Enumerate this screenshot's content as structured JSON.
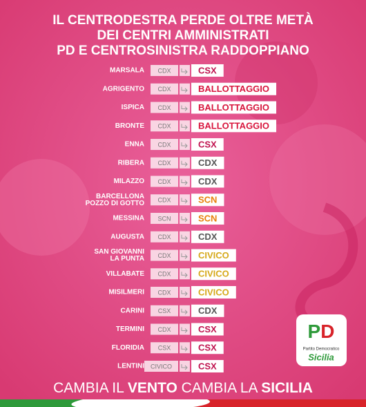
{
  "header": {
    "title": [
      "IL CENTRODESTRA PERDE OLTRE METÀ",
      "DEI CENTRI AMMINISTRATI",
      "PD E CENTROSINISTRA RADDOPPIANO"
    ]
  },
  "table": {
    "rows": [
      {
        "city": [
          "MARSALA"
        ],
        "before": "CDX",
        "after": "CSX",
        "color": "#c0134f"
      },
      {
        "city": [
          "AGRIGENTO"
        ],
        "before": "CDX",
        "after": "BALLOTTAGGIO",
        "color": "#d8143c"
      },
      {
        "city": [
          "ISPICA"
        ],
        "before": "CDX",
        "after": "BALLOTTAGGIO",
        "color": "#d8143c"
      },
      {
        "city": [
          "BRONTE"
        ],
        "before": "CDX",
        "after": "BALLOTTAGGIO",
        "color": "#d8143c"
      },
      {
        "city": [
          "ENNA"
        ],
        "before": "CDX",
        "after": "CSX",
        "color": "#c0134f"
      },
      {
        "city": [
          "RIBERA"
        ],
        "before": "CDX",
        "after": "CDX",
        "color": "#555555"
      },
      {
        "city": [
          "MILAZZO"
        ],
        "before": "CDX",
        "after": "CDX",
        "color": "#555555"
      },
      {
        "city": [
          "BARCELLONA",
          "POZZO DI GOTTO"
        ],
        "before": "CDX",
        "after": "SCN",
        "color": "#e8810a"
      },
      {
        "city": [
          "MESSINA"
        ],
        "before": "SCN",
        "after": "SCN",
        "color": "#e8810a"
      },
      {
        "city": [
          "AUGUSTA"
        ],
        "before": "CDX",
        "after": "CDX",
        "color": "#555555"
      },
      {
        "city": [
          "SAN GIOVANNI",
          "LA PUNTA"
        ],
        "before": "CDX",
        "after": "CIVICO",
        "color": "#d6a91a"
      },
      {
        "city": [
          "VILLABATE"
        ],
        "before": "CDX",
        "after": "CIVICO",
        "color": "#d6a91a"
      },
      {
        "city": [
          "MISILMERI"
        ],
        "before": "CDX",
        "after": "CIVICO",
        "color": "#d6a91a"
      },
      {
        "city": [
          "CARINI"
        ],
        "before": "CSX",
        "after": "CDX",
        "color": "#555555"
      },
      {
        "city": [
          "TERMINI"
        ],
        "before": "CDX",
        "after": "CSX",
        "color": "#c0134f"
      },
      {
        "city": [
          "FLORIDIA"
        ],
        "before": "CSX",
        "after": "CSX",
        "color": "#c0134f"
      },
      {
        "city": [
          "LENTINI"
        ],
        "before": "CIVICO",
        "after": "CSX",
        "color": "#c0134f"
      }
    ]
  },
  "logo": {
    "mark": [
      "P",
      "D"
    ],
    "party": "Partito Democratico",
    "region": "Sicilia"
  },
  "footer": {
    "slogan": [
      "CAMBIA IL",
      "VENTO",
      "CAMBIA LA",
      "SICILIA"
    ]
  }
}
